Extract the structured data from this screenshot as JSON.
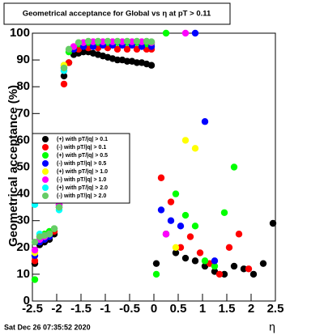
{
  "chart_data": {
    "type": "scatter",
    "title": "Geometrical acceptance for Global vs  η at pT > 0.11",
    "y_label": "Geometrical acceptance (%)",
    "x_label": "η",
    "date": "Sat Dec 26 07:35:52 2020",
    "xlim": [
      -2.5,
      2.5
    ],
    "ylim": [
      0,
      100
    ],
    "xticks": [
      -2.5,
      -2,
      -1.5,
      -1,
      -0.5,
      0,
      0.5,
      1,
      1.5,
      2,
      2.5
    ],
    "yticks": [
      0,
      10,
      20,
      30,
      40,
      50,
      60,
      70,
      80,
      90,
      100
    ],
    "series": [
      {
        "name": "(+) with pT/|q| > 0.1",
        "color": "#000000",
        "x": [
          -2.45,
          -2.35,
          -2.25,
          -2.15,
          -2.05,
          -1.95,
          -1.85,
          -1.75,
          -1.65,
          -1.55,
          -1.45,
          -1.35,
          -1.25,
          -1.15,
          -1.05,
          -0.95,
          -0.85,
          -0.75,
          -0.65,
          -0.55,
          -0.45,
          -0.35,
          -0.25,
          -0.15,
          -0.05,
          0.05,
          0.25,
          0.45,
          0.65,
          0.85,
          1.05,
          1.25,
          1.45,
          1.65,
          1.85,
          2.05,
          2.25,
          2.45
        ],
        "values": [
          14,
          21,
          22,
          23,
          25,
          35,
          84,
          89,
          92,
          92.5,
          93,
          93,
          92.5,
          92,
          91.5,
          91,
          90.5,
          90,
          90,
          89.5,
          89.5,
          89,
          89,
          88.5,
          88,
          14,
          25,
          18,
          16,
          15,
          13,
          11,
          10,
          13,
          12,
          10,
          14,
          29
        ]
      },
      {
        "name": "(-) with pT/|q| > 0.1",
        "color": "#ff0000",
        "x": [
          -2.45,
          -2.35,
          -2.25,
          -2.15,
          -2.05,
          -1.95,
          -1.85,
          -1.75,
          -1.55,
          -1.35,
          -1.15,
          -0.95,
          -0.75,
          -0.55,
          -0.35,
          -0.15,
          -0.05,
          0.15,
          0.35,
          0.55,
          0.75,
          0.95,
          1.15,
          1.35,
          1.55,
          1.75,
          1.95
        ],
        "values": [
          15,
          22,
          23,
          24,
          26,
          36,
          81,
          89,
          94,
          94.5,
          94.5,
          94.5,
          94,
          94,
          94,
          94,
          94,
          46,
          37,
          20,
          24,
          18,
          14,
          10,
          20,
          25,
          12
        ]
      },
      {
        "name": "(+) with pT/|q| > 0.5",
        "color": "#00ff00",
        "x": [
          -2.45,
          -2.35,
          -2.25,
          -2.15,
          -2.05,
          -1.95,
          -1.85,
          -1.75,
          -1.55,
          -1.35,
          -1.15,
          -0.95,
          -0.75,
          -0.55,
          -0.35,
          -0.15,
          -0.05,
          0.05,
          0.25,
          0.45,
          0.65,
          0.85,
          1.05,
          1.25,
          1.45,
          1.65
        ],
        "values": [
          8,
          24,
          25,
          26,
          27,
          37,
          88,
          93,
          96,
          96.5,
          96.5,
          96.5,
          96.5,
          96.5,
          96.5,
          96,
          96,
          10,
          100,
          40,
          32,
          28,
          15,
          13,
          33,
          50
        ]
      },
      {
        "name": "(-) with pT/|q| > 0.5",
        "color": "#0000ff",
        "x": [
          -2.45,
          -2.35,
          -2.25,
          -2.15,
          -1.95,
          -1.85,
          -1.65,
          -1.45,
          -1.25,
          -1.05,
          -0.85,
          -0.65,
          -0.45,
          -0.25,
          -0.05,
          0.15,
          0.35,
          0.55,
          0.85,
          1.05,
          1.25
        ],
        "values": [
          17,
          22,
          23,
          24,
          36,
          87,
          94,
          95,
          95,
          95.5,
          95.5,
          95.5,
          95.5,
          95,
          95,
          34,
          30,
          28,
          100,
          67,
          15
        ]
      },
      {
        "name": "(+) with pT/|q| > 1.0",
        "color": "#ffff00",
        "x": [
          -2.45,
          -2.35,
          -2.25,
          -2.15,
          -1.95,
          -1.85,
          -1.65,
          -1.45,
          -1.25,
          -1.05,
          -0.85,
          -0.65,
          -0.45,
          -0.25,
          -0.05,
          0.45,
          0.65,
          0.85
        ],
        "values": [
          18,
          23,
          24,
          25,
          37,
          88,
          95,
          96.5,
          96.8,
          96.8,
          96.8,
          96.8,
          96.8,
          96.8,
          96.5,
          20,
          60,
          57
        ]
      },
      {
        "name": "(-) with pT/|q| > 1.0",
        "color": "#ff00ff",
        "x": [
          -2.45,
          -2.35,
          -2.25,
          -2.15,
          -1.95,
          -1.85,
          -1.65,
          -1.45,
          -1.25,
          -1.05,
          -0.85,
          -0.65,
          -0.45,
          -0.25,
          -0.05,
          0.25,
          0.65
        ],
        "values": [
          19,
          23,
          24,
          25,
          36,
          86,
          95,
          96.5,
          96.8,
          96.8,
          96.8,
          96.8,
          96.8,
          96.8,
          96.5,
          25,
          100
        ]
      },
      {
        "name": "(+) with pT/|q| > 2.0",
        "color": "#00ffff",
        "x": [
          -2.45,
          -2.35,
          -1.95,
          -1.85
        ],
        "values": [
          36,
          25,
          34,
          86
        ]
      },
      {
        "name": "(-) with pT/|q| > 2.0",
        "color": "#66cc66",
        "x": [
          -2.45,
          -2.35,
          -2.25,
          -2.15,
          -2.05,
          -1.95,
          -1.85,
          -1.75,
          -1.55,
          -1.35,
          -1.15,
          -0.95,
          -0.75,
          -0.55,
          -0.35,
          -0.15,
          -0.05
        ],
        "values": [
          22,
          24,
          24.5,
          25,
          27,
          35,
          87,
          94,
          96.5,
          97,
          97,
          97,
          97,
          97,
          97,
          97,
          96.8
        ]
      }
    ]
  }
}
